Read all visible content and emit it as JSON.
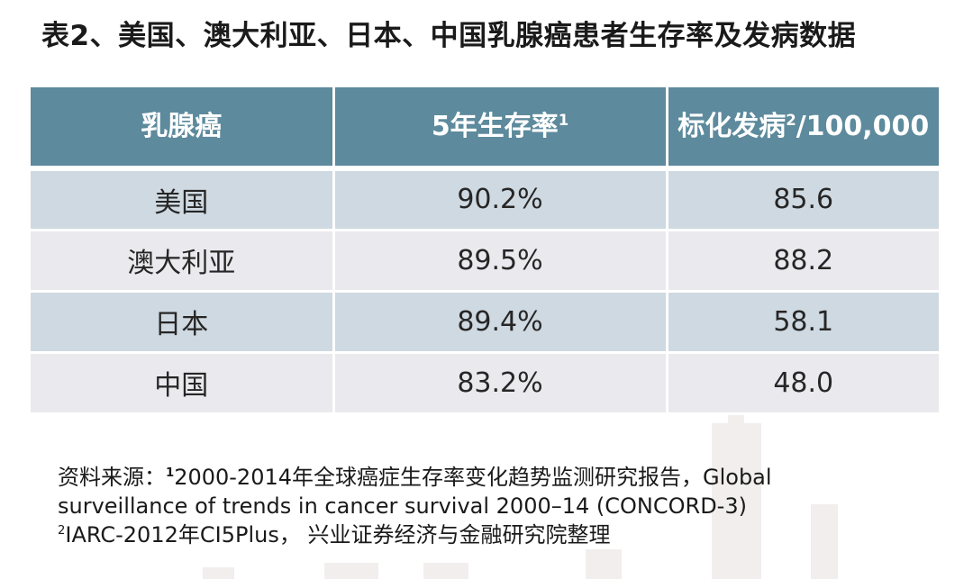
{
  "title": "表2、美国、澳大利亚、日本、中国乳腺癌患者生存率及发病数据",
  "table": {
    "headers": [
      {
        "label": "乳腺癌",
        "sup": ""
      },
      {
        "label": "5年生存率",
        "sup": "1"
      },
      {
        "label": "标化发病",
        "sup": "2",
        "suffix": "/100,000"
      }
    ],
    "rows": [
      {
        "country": "美国",
        "survival": "90.2%",
        "incidence": "85.6"
      },
      {
        "country": "澳大利亚",
        "survival": "89.5%",
        "incidence": "88.2"
      },
      {
        "country": "日本",
        "survival": "89.4%",
        "incidence": "58.1"
      },
      {
        "country": "中国",
        "survival": "83.2%",
        "incidence": "48.0"
      }
    ]
  },
  "source": {
    "prefix": "资料来源：",
    "note1_mark": "1",
    "note1_text": "2000-2014年全球癌症生存率变化趋势监测研究报告，Global",
    "note1_cont": "surveillance of trends in cancer survival 2000–14 (CONCORD-3)",
    "note2_mark": "2",
    "note2_text": "IARC-2012年CI5Plus，  兴业证券经济与金融研究院整理"
  }
}
